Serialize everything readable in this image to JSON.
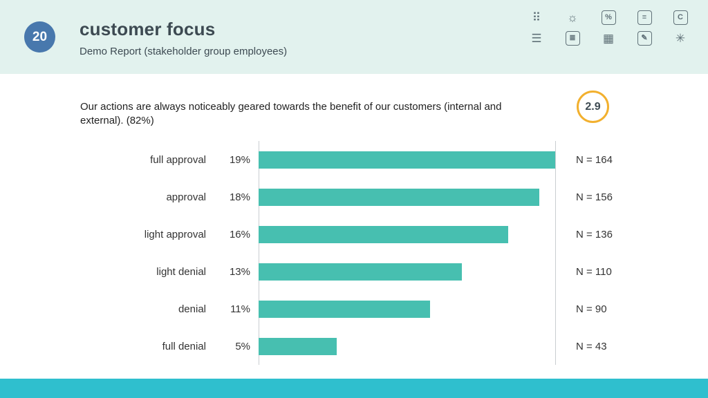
{
  "header": {
    "badge": "20",
    "title": "customer focus",
    "subtitle": "Demo Report (stakeholder group employees)",
    "background_color": "#e2f2ee",
    "badge_color": "#4878ad"
  },
  "toolbar": {
    "icons": [
      {
        "name": "grid-dots-icon",
        "glyph": "⠿",
        "boxed": false
      },
      {
        "name": "sun-icon",
        "glyph": "☼",
        "boxed": false
      },
      {
        "name": "percent-icon",
        "glyph": "%",
        "boxed": true
      },
      {
        "name": "comment-icon",
        "glyph": "≡",
        "boxed": true
      },
      {
        "name": "letter-c-icon",
        "glyph": "C",
        "boxed": true
      },
      {
        "name": "align-list-icon",
        "glyph": "☰",
        "boxed": false
      },
      {
        "name": "document-icon",
        "glyph": "≣",
        "boxed": true
      },
      {
        "name": "table-icon",
        "glyph": "▦",
        "boxed": false
      },
      {
        "name": "report-edit-icon",
        "glyph": "✎",
        "boxed": true
      },
      {
        "name": "sparkle-icon",
        "glyph": "✳",
        "boxed": false
      }
    ]
  },
  "question": {
    "text": "Our actions are always noticeably geared towards the benefit of our customers (internal and external). (82%)",
    "score": "2.9",
    "score_ring_color": "#f2b02e"
  },
  "chart_data": {
    "type": "bar",
    "orientation": "horizontal",
    "title": "",
    "categories": [
      "full approval",
      "approval",
      "light approval",
      "light denial",
      "denial",
      "full denial"
    ],
    "values": [
      19,
      18,
      16,
      13,
      11,
      5
    ],
    "value_suffix": "%",
    "counts": [
      "N = 164",
      "N = 156",
      "N = 136",
      "N = 110",
      "N = 90",
      "N = 43"
    ],
    "xmax": 19,
    "bar_color": "#47bfb0",
    "grid": "off",
    "legend": "none"
  },
  "footer": {
    "bar_color": "#2fbfce"
  }
}
